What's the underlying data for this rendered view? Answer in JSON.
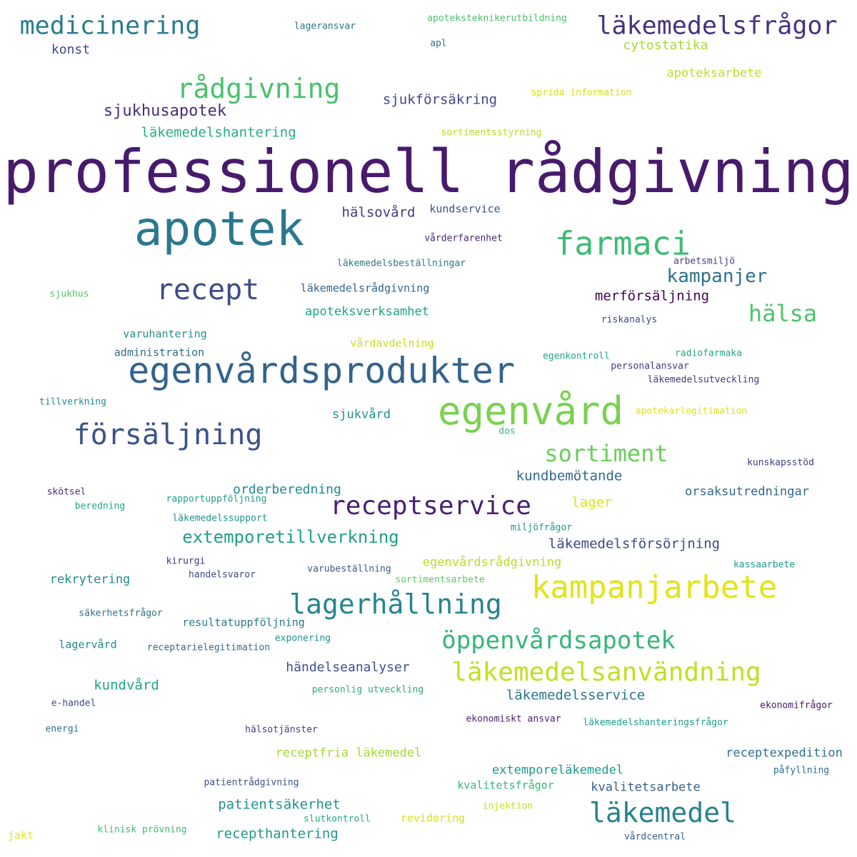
{
  "words": [
    {
      "text": "professionell rådgivning",
      "color": "#481a6c"
    },
    {
      "text": "apotek",
      "color": "#2a788e"
    },
    {
      "text": "egenvårdsprodukter",
      "color": "#33638d"
    },
    {
      "text": "egenvård",
      "color": "#7ad151"
    },
    {
      "text": "farmaci",
      "color": "#3dbc74"
    },
    {
      "text": "kampanjarbete",
      "color": "#e2e418"
    },
    {
      "text": "läkemedelsfrågor",
      "color": "#46327e"
    },
    {
      "text": "medicinering",
      "color": "#287c8e"
    },
    {
      "text": "rådgivning",
      "color": "#4ac16d"
    },
    {
      "text": "recept",
      "color": "#3e4a89"
    },
    {
      "text": "försäljning",
      "color": "#3b528b"
    },
    {
      "text": "receptservice",
      "color": "#482173"
    },
    {
      "text": "lagerhållning",
      "color": "#25848e"
    },
    {
      "text": "läkemedelsanvändning",
      "color": "#c2df23"
    },
    {
      "text": "läkemedel",
      "color": "#26828e"
    },
    {
      "text": "öppenvårdsapotek",
      "color": "#35b779"
    },
    {
      "text": "sortiment",
      "color": "#6ccd5a"
    },
    {
      "text": "hälsa",
      "color": "#4ec36b"
    },
    {
      "text": "kampanjer",
      "color": "#2c728e"
    },
    {
      "text": "extemporetillverkning",
      "color": "#1f9e89"
    },
    {
      "text": "sjukhusapotek",
      "color": "#472d7b"
    },
    {
      "text": "läkemedelshantering",
      "color": "#29af7f"
    },
    {
      "text": "cytostatika",
      "color": "#a8db34"
    },
    {
      "text": "apoteksarbete",
      "color": "#bddf26"
    },
    {
      "text": "sjukförsäkring",
      "color": "#414487"
    },
    {
      "text": "konst",
      "color": "#404688"
    },
    {
      "text": "lageransvar",
      "color": "#2d708e"
    },
    {
      "text": "apoteksteknikerutbildning",
      "color": "#4ac16d"
    },
    {
      "text": "apl",
      "color": "#2d708e"
    },
    {
      "text": "sprida information",
      "color": "#d0e11c"
    },
    {
      "text": "sortimentsstyrning",
      "color": "#b5de2b"
    },
    {
      "text": "hälsovård",
      "color": "#443a83"
    },
    {
      "text": "kundservice",
      "color": "#3b528b"
    },
    {
      "text": "vårderfarenhet",
      "color": "#482979"
    },
    {
      "text": "arbetsmiljö",
      "color": "#433e85"
    },
    {
      "text": "läkemedelsbeställningar",
      "color": "#2a788e"
    },
    {
      "text": "läkemedelsrådgivning",
      "color": "#33638d"
    },
    {
      "text": "merförsäljning",
      "color": "#440154"
    },
    {
      "text": "apoteksverksamhet",
      "color": "#20a386"
    },
    {
      "text": "sjukhus",
      "color": "#54c568"
    },
    {
      "text": "riskanalys",
      "color": "#3e4a89"
    },
    {
      "text": "varuhantering",
      "color": "#21918c"
    },
    {
      "text": "vårdavdelning",
      "color": "#c8e020"
    },
    {
      "text": "administration",
      "color": "#2f6c8e"
    },
    {
      "text": "egenkontroll",
      "color": "#22a785"
    },
    {
      "text": "radiofarmaka",
      "color": "#22a785"
    },
    {
      "text": "personalansvar",
      "color": "#443983"
    },
    {
      "text": "läkemedelsutveckling",
      "color": "#453781"
    },
    {
      "text": "tillverkning",
      "color": "#228c8d"
    },
    {
      "text": "sjukvård",
      "color": "#21918c"
    },
    {
      "text": "apotekarlegitimation",
      "color": "#dde318"
    },
    {
      "text": "dos",
      "color": "#37b878"
    },
    {
      "text": "kundbemötande",
      "color": "#306a8e"
    },
    {
      "text": "kunskapsstöd",
      "color": "#424186"
    },
    {
      "text": "orderberedning",
      "color": "#23898e"
    },
    {
      "text": "orsaksutredningar",
      "color": "#31688e"
    },
    {
      "text": "skötsel",
      "color": "#46307e"
    },
    {
      "text": "beredning",
      "color": "#22a785"
    },
    {
      "text": "rapportuppföljning",
      "color": "#1fa187"
    },
    {
      "text": "lager",
      "color": "#dde318"
    },
    {
      "text": "läkemedelssupport",
      "color": "#21918c"
    },
    {
      "text": "miljöfrågor",
      "color": "#1f988b"
    },
    {
      "text": "läkemedelsförsörjning",
      "color": "#3f4788"
    },
    {
      "text": "kirurgi",
      "color": "#46327e"
    },
    {
      "text": "handelsvaror",
      "color": "#3e4989"
    },
    {
      "text": "varubeställning",
      "color": "#39568c"
    },
    {
      "text": "egenvårdsrådgivning",
      "color": "#b8de29"
    },
    {
      "text": "sortimentsarbete",
      "color": "#5ec962"
    },
    {
      "text": "kassaarbete",
      "color": "#1e9b8a"
    },
    {
      "text": "rekrytering",
      "color": "#23898e"
    },
    {
      "text": "säkerhetsfrågor",
      "color": "#2c728e"
    },
    {
      "text": "resultatuppföljning",
      "color": "#2a788e"
    },
    {
      "text": "exponering",
      "color": "#21918c"
    },
    {
      "text": "lagervård",
      "color": "#25858e"
    },
    {
      "text": "receptarielegitimation",
      "color": "#2e6e8e"
    },
    {
      "text": "händelseanalyser",
      "color": "#3b528b"
    },
    {
      "text": "kundvård",
      "color": "#20a386"
    },
    {
      "text": "läkemedelsservice",
      "color": "#2a768e"
    },
    {
      "text": "personlig utveckling",
      "color": "#28ae80"
    },
    {
      "text": "e-handel",
      "color": "#3e4989"
    },
    {
      "text": "ekonomifrågor",
      "color": "#481769"
    },
    {
      "text": "energi",
      "color": "#2c738e"
    },
    {
      "text": "hälsotjänster",
      "color": "#414487"
    },
    {
      "text": "ekonomiskt ansvar",
      "color": "#481f70"
    },
    {
      "text": "läkemedelshanteringsfrågor",
      "color": "#1fa088"
    },
    {
      "text": "receptfria läkemedel",
      "color": "#a2da37"
    },
    {
      "text": "receptexpedition",
      "color": "#2c728e"
    },
    {
      "text": "extemporeläkemedel",
      "color": "#1f988b"
    },
    {
      "text": "påfyllning",
      "color": "#2c728e"
    },
    {
      "text": "patientrådgivning",
      "color": "#3b528b"
    },
    {
      "text": "kvalitetsfrågor",
      "color": "#35b779"
    },
    {
      "text": "kvalitetsarbete",
      "color": "#355f8d"
    },
    {
      "text": "patientsäkerhet",
      "color": "#21918c"
    },
    {
      "text": "injektion",
      "color": "#c5e021"
    },
    {
      "text": "slutkontroll",
      "color": "#27ad81"
    },
    {
      "text": "revidering",
      "color": "#d8e219"
    },
    {
      "text": "recepthantering",
      "color": "#1f9a8a"
    },
    {
      "text": "jakt",
      "color": "#e5e419"
    },
    {
      "text": "klinisk prövning",
      "color": "#3dbc74"
    },
    {
      "text": "vårdcentral",
      "color": "#365c8d"
    }
  ]
}
